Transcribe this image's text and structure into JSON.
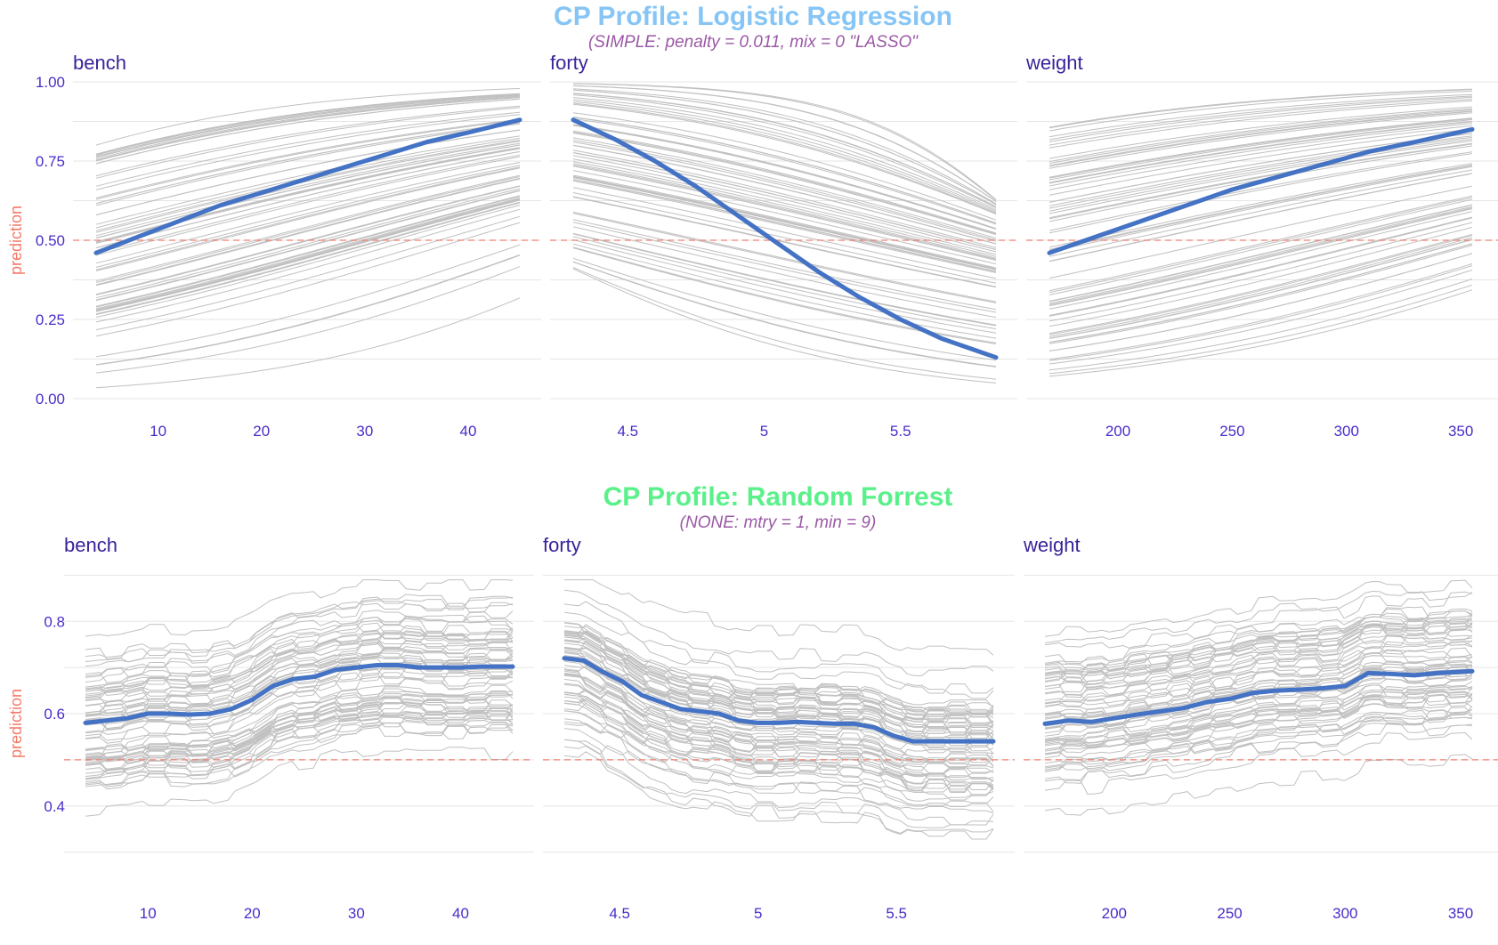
{
  "charts": [
    {
      "title": "CP Profile: Logistic Regression",
      "subtitle": "(SIMPLE: penalty = 0.011, mix = 0 \"LASSO\"",
      "title_color": "#86c5f5",
      "ylabel": "prediction",
      "y_ticks": [
        {
          "value": 0.0,
          "label": "0.00"
        },
        {
          "value": 0.25,
          "label": "0.25"
        },
        {
          "value": 0.5,
          "label": "0.50"
        },
        {
          "value": 0.75,
          "label": "0.75"
        },
        {
          "value": 1.0,
          "label": "1.00"
        }
      ]
    },
    {
      "title": "CP Profile: Random Forrest",
      "subtitle": "(NONE: mtry = 1, min = 9)",
      "title_color": "#5af08a",
      "ylabel": "prediction",
      "y_ticks": [
        {
          "value": 0.4,
          "label": "0.4"
        },
        {
          "value": 0.6,
          "label": "0.6"
        },
        {
          "value": 0.8,
          "label": "0.8"
        }
      ]
    }
  ],
  "chart_data": [
    {
      "type": "line",
      "title": "CP Profile: Logistic Regression",
      "subtitle": "(SIMPLE: penalty = 0.011, mix = 0 \"LASSO\"",
      "ylabel": "prediction",
      "ylim": [
        0,
        1
      ],
      "reference_line": 0.5,
      "grid": true,
      "panels": [
        {
          "variable": "bench",
          "xlim": [
            4,
            45
          ],
          "x_ticks": [
            10,
            20,
            30,
            40
          ],
          "x": [
            4,
            8,
            12,
            16,
            20,
            24,
            28,
            32,
            36,
            40,
            45
          ],
          "series": [
            {
              "values": [
                0.46,
                0.51,
                0.56,
                0.61,
                0.65,
                0.69,
                0.73,
                0.77,
                0.81,
                0.84,
                0.88
              ]
            }
          ],
          "ice_range": {
            "min_start": 0.03,
            "max_start": 0.82,
            "min_end": 0.29,
            "max_end": 0.99
          }
        },
        {
          "variable": "forty",
          "xlim": [
            4.3,
            5.85
          ],
          "x_ticks": [
            4.5,
            5.0,
            5.5
          ],
          "x": [
            4.3,
            4.45,
            4.6,
            4.75,
            4.9,
            5.05,
            5.2,
            5.35,
            5.5,
            5.65,
            5.85
          ],
          "series": [
            {
              "values": [
                0.88,
                0.82,
                0.75,
                0.67,
                0.58,
                0.49,
                0.4,
                0.32,
                0.25,
                0.19,
                0.13
              ]
            }
          ],
          "ice_range": {
            "min_start": 0.4,
            "max_start": 1.0,
            "min_end": 0.0,
            "max_end": 0.63
          }
        },
        {
          "variable": "weight",
          "xlim": [
            170,
            355
          ],
          "x_ticks": [
            200,
            250,
            300,
            350
          ],
          "x": [
            170,
            190,
            210,
            230,
            250,
            270,
            290,
            310,
            330,
            355
          ],
          "series": [
            {
              "values": [
                0.46,
                0.51,
                0.56,
                0.61,
                0.66,
                0.7,
                0.74,
                0.78,
                0.81,
                0.85
              ]
            }
          ],
          "ice_range": {
            "min_start": 0.04,
            "max_start": 0.88,
            "min_end": 0.25,
            "max_end": 0.99
          }
        }
      ]
    },
    {
      "type": "line",
      "title": "CP Profile: Random Forrest",
      "subtitle": "(NONE: mtry = 1, min = 9)",
      "ylabel": "prediction",
      "ylim": [
        0.28,
        0.92
      ],
      "reference_line": 0.5,
      "grid": true,
      "panels": [
        {
          "variable": "bench",
          "xlim": [
            4,
            45
          ],
          "x_ticks": [
            10,
            20,
            30,
            40
          ],
          "x": [
            4,
            6,
            8,
            10,
            12,
            14,
            16,
            18,
            20,
            22,
            24,
            26,
            28,
            30,
            32,
            34,
            36,
            38,
            40,
            42,
            45
          ],
          "series": [
            {
              "values": [
                0.58,
                0.585,
                0.59,
                0.6,
                0.6,
                0.598,
                0.6,
                0.61,
                0.63,
                0.66,
                0.675,
                0.68,
                0.695,
                0.7,
                0.705,
                0.705,
                0.7,
                0.7,
                0.7,
                0.702,
                0.702
              ]
            }
          ],
          "ice_range": {
            "min": 0.31,
            "max": 0.89
          }
        },
        {
          "variable": "forty",
          "xlim": [
            4.3,
            5.85
          ],
          "x_ticks": [
            4.5,
            5.0,
            5.5
          ],
          "x": [
            4.3,
            4.37,
            4.44,
            4.51,
            4.58,
            4.65,
            4.72,
            4.79,
            4.86,
            4.93,
            5.0,
            5.07,
            5.14,
            5.21,
            5.28,
            5.35,
            5.42,
            5.49,
            5.56,
            5.63,
            5.7,
            5.85
          ],
          "series": [
            {
              "values": [
                0.72,
                0.715,
                0.69,
                0.67,
                0.64,
                0.625,
                0.61,
                0.605,
                0.6,
                0.585,
                0.58,
                0.58,
                0.582,
                0.58,
                0.578,
                0.578,
                0.57,
                0.552,
                0.54,
                0.54,
                0.54,
                0.54
              ]
            }
          ],
          "ice_range": {
            "min": 0.32,
            "max": 0.89
          }
        },
        {
          "variable": "weight",
          "xlim": [
            170,
            355
          ],
          "x_ticks": [
            200,
            250,
            300,
            350
          ],
          "x": [
            170,
            180,
            190,
            200,
            210,
            220,
            230,
            240,
            250,
            260,
            270,
            280,
            290,
            300,
            310,
            320,
            330,
            340,
            355
          ],
          "series": [
            {
              "values": [
                0.578,
                0.585,
                0.582,
                0.59,
                0.598,
                0.605,
                0.612,
                0.625,
                0.632,
                0.645,
                0.65,
                0.652,
                0.655,
                0.66,
                0.688,
                0.686,
                0.683,
                0.688,
                0.692
              ]
            }
          ],
          "ice_range": {
            "min": 0.27,
            "max": 0.89
          }
        }
      ]
    }
  ]
}
